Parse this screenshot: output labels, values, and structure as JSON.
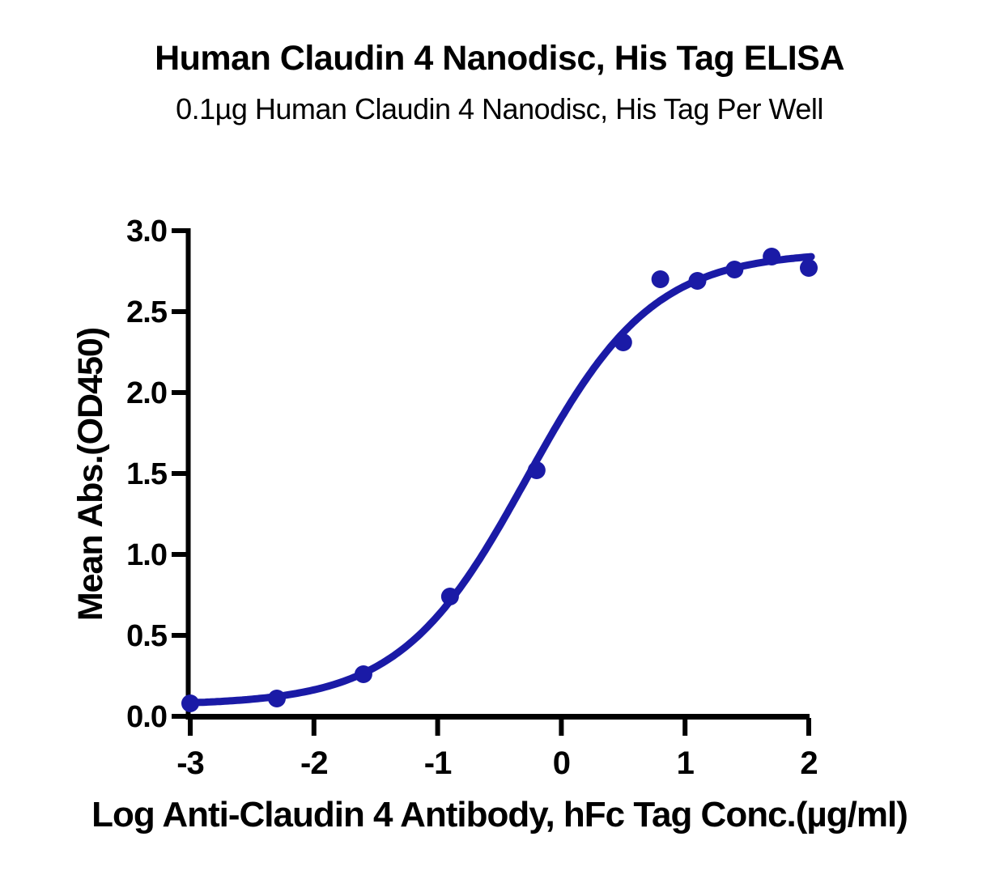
{
  "chart_data": {
    "type": "scatter",
    "title": "Human Claudin 4 Nanodisc, His Tag ELISA",
    "subtitle": "0.1µg Human Claudin 4 Nanodisc, His Tag Per Well",
    "xlabel": "Log Anti-Claudin 4 Antibody, hFc Tag Conc.(µg/ml)",
    "ylabel": "Mean Abs.(OD450)",
    "series": [
      {
        "name": "Anti-Claudin 4 Antibody, hFc Tag",
        "x": [
          -3.0,
          -2.3,
          -1.6,
          -0.9,
          -0.2,
          0.5,
          0.8,
          1.1,
          1.4,
          1.7,
          2.0
        ],
        "y": [
          0.08,
          0.11,
          0.26,
          0.74,
          1.52,
          2.31,
          2.7,
          2.69,
          2.76,
          2.84,
          2.77
        ]
      }
    ],
    "fit_curve": {
      "model": "4PL",
      "bottom": 0.07,
      "top": 2.87,
      "log_ec50": -0.28,
      "hill_slope": 0.85,
      "x_start": -3.0,
      "x_end": 2.02
    },
    "xlim": [
      -3,
      2
    ],
    "ylim": [
      0,
      3
    ],
    "x_ticks": [
      -3,
      -2,
      -1,
      0,
      1,
      2
    ],
    "x_tick_labels": [
      "-3",
      "-2",
      "-1",
      "0",
      "1",
      "2"
    ],
    "y_ticks": [
      0,
      0.5,
      1,
      1.5,
      2,
      2.5,
      3
    ],
    "y_tick_labels": [
      "0.0",
      "0.5",
      "1.0",
      "1.5",
      "2.0",
      "2.5",
      "3.0"
    ],
    "grid": false,
    "legend_position": "none",
    "colors": {
      "marker": "#1a1aa6",
      "line": "#1a1aa6",
      "axis": "#000000",
      "text": "#000000",
      "background": "#ffffff"
    }
  }
}
